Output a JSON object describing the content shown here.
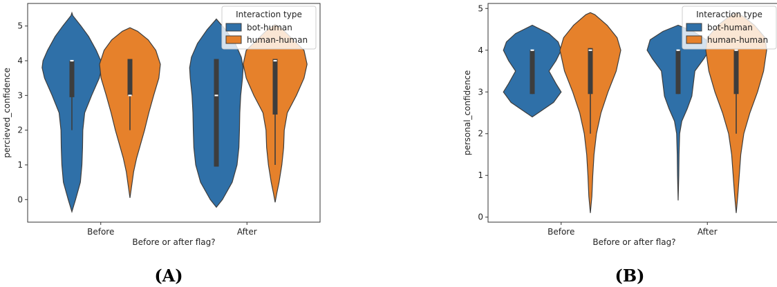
{
  "chart_data": [
    {
      "type": "violin",
      "panel_label": "(A)",
      "xlabel": "Before or after flag?",
      "ylabel": "percieved_confidence",
      "categories": [
        "Before",
        "After"
      ],
      "ylim": [
        -0.65,
        5.65
      ],
      "yticks": [
        0,
        1,
        2,
        3,
        4,
        5
      ],
      "legend": {
        "title": "Interaction type",
        "position": "top-right"
      },
      "series": [
        {
          "name": "bot-human",
          "color": "#2f70a8"
        },
        {
          "name": "human-human",
          "color": "#e6812b"
        }
      ],
      "violins": [
        {
          "category": "Before",
          "series": "bot-human",
          "q1": 2.95,
          "median": 4.0,
          "q3": 4.0,
          "whisker_low": 2.0,
          "whisker_high": 4.0,
          "profile": [
            [
              -0.35,
              0.0
            ],
            [
              0.0,
              0.12
            ],
            [
              0.5,
              0.28
            ],
            [
              1.0,
              0.33
            ],
            [
              1.5,
              0.35
            ],
            [
              2.0,
              0.36
            ],
            [
              2.5,
              0.42
            ],
            [
              3.0,
              0.65
            ],
            [
              3.5,
              0.9
            ],
            [
              3.8,
              0.98
            ],
            [
              4.0,
              0.95
            ],
            [
              4.3,
              0.8
            ],
            [
              4.7,
              0.55
            ],
            [
              5.0,
              0.3
            ],
            [
              5.3,
              0.03
            ],
            [
              5.38,
              0.0
            ]
          ]
        },
        {
          "category": "Before",
          "series": "human-human",
          "q1": 3.0,
          "median": 3.0,
          "q3": 4.05,
          "whisker_low": 2.0,
          "whisker_high": 4.05,
          "profile": [
            [
              0.05,
              0.0
            ],
            [
              0.3,
              0.04
            ],
            [
              0.8,
              0.12
            ],
            [
              1.2,
              0.22
            ],
            [
              1.6,
              0.35
            ],
            [
              2.0,
              0.48
            ],
            [
              2.5,
              0.62
            ],
            [
              3.0,
              0.78
            ],
            [
              3.5,
              0.95
            ],
            [
              3.9,
              1.0
            ],
            [
              4.3,
              0.85
            ],
            [
              4.6,
              0.6
            ],
            [
              4.85,
              0.25
            ],
            [
              4.95,
              0.0
            ]
          ]
        },
        {
          "category": "After",
          "series": "bot-human",
          "q1": 0.95,
          "median": 3.0,
          "q3": 4.05,
          "whisker_low": 0.95,
          "whisker_high": 4.05,
          "profile": [
            [
              -0.22,
              0.0
            ],
            [
              0.0,
              0.2
            ],
            [
              0.5,
              0.52
            ],
            [
              1.0,
              0.68
            ],
            [
              1.5,
              0.74
            ],
            [
              2.0,
              0.76
            ],
            [
              2.5,
              0.77
            ],
            [
              3.0,
              0.8
            ],
            [
              3.5,
              0.86
            ],
            [
              3.8,
              0.88
            ],
            [
              4.1,
              0.82
            ],
            [
              4.5,
              0.62
            ],
            [
              4.9,
              0.3
            ],
            [
              5.15,
              0.05
            ],
            [
              5.2,
              0.0
            ]
          ]
        },
        {
          "category": "After",
          "series": "human-human",
          "q1": 2.45,
          "median": 4.0,
          "q3": 4.05,
          "whisker_low": 1.0,
          "whisker_high": 4.05,
          "profile": [
            [
              -0.08,
              0.0
            ],
            [
              0.2,
              0.06
            ],
            [
              0.5,
              0.13
            ],
            [
              1.0,
              0.22
            ],
            [
              1.5,
              0.28
            ],
            [
              2.0,
              0.3
            ],
            [
              2.5,
              0.4
            ],
            [
              3.0,
              0.7
            ],
            [
              3.5,
              0.95
            ],
            [
              3.9,
              1.05
            ],
            [
              4.3,
              0.95
            ],
            [
              4.6,
              0.6
            ],
            [
              4.9,
              0.25
            ],
            [
              5.05,
              0.0
            ]
          ]
        }
      ]
    },
    {
      "type": "violin",
      "panel_label": "(B)",
      "xlabel": "Before or after flag?",
      "ylabel": "personal_confidence",
      "categories": [
        "Before",
        "After"
      ],
      "ylim": [
        -0.12,
        5.12
      ],
      "yticks": [
        0,
        1,
        2,
        3,
        4,
        5
      ],
      "legend": {
        "title": "Interaction type",
        "position": "top-right"
      },
      "series": [
        {
          "name": "bot-human",
          "color": "#2f70a8"
        },
        {
          "name": "human-human",
          "color": "#e6812b"
        }
      ],
      "violins": [
        {
          "category": "Before",
          "series": "bot-human",
          "q1": 2.95,
          "median": 4.0,
          "q3": 4.0,
          "whisker_low": 2.95,
          "whisker_high": 4.0,
          "profile": [
            [
              2.4,
              0.0
            ],
            [
              2.55,
              0.3
            ],
            [
              2.75,
              0.7
            ],
            [
              3.0,
              0.95
            ],
            [
              3.2,
              0.78
            ],
            [
              3.5,
              0.55
            ],
            [
              3.75,
              0.78
            ],
            [
              4.0,
              0.95
            ],
            [
              4.2,
              0.85
            ],
            [
              4.4,
              0.55
            ],
            [
              4.58,
              0.05
            ],
            [
              4.6,
              0.0
            ]
          ]
        },
        {
          "category": "Before",
          "series": "human-human",
          "q1": 2.95,
          "median": 4.0,
          "q3": 4.05,
          "whisker_low": 2.0,
          "whisker_high": 4.05,
          "profile": [
            [
              0.1,
              0.0
            ],
            [
              0.5,
              0.05
            ],
            [
              1.0,
              0.08
            ],
            [
              1.5,
              0.12
            ],
            [
              2.0,
              0.2
            ],
            [
              2.5,
              0.35
            ],
            [
              3.0,
              0.58
            ],
            [
              3.5,
              0.85
            ],
            [
              4.0,
              1.0
            ],
            [
              4.3,
              0.88
            ],
            [
              4.6,
              0.55
            ],
            [
              4.85,
              0.15
            ],
            [
              4.9,
              0.0
            ]
          ]
        },
        {
          "category": "After",
          "series": "bot-human",
          "q1": 2.95,
          "median": 4.0,
          "q3": 4.0,
          "whisker_low": 2.95,
          "whisker_high": 4.0,
          "profile": [
            [
              0.4,
              0.0
            ],
            [
              1.0,
              0.02
            ],
            [
              1.5,
              0.03
            ],
            [
              2.0,
              0.05
            ],
            [
              2.3,
              0.12
            ],
            [
              2.6,
              0.3
            ],
            [
              2.9,
              0.45
            ],
            [
              3.2,
              0.5
            ],
            [
              3.5,
              0.55
            ],
            [
              3.8,
              0.85
            ],
            [
              4.0,
              1.02
            ],
            [
              4.25,
              0.92
            ],
            [
              4.45,
              0.5
            ],
            [
              4.6,
              0.0
            ]
          ]
        },
        {
          "category": "After",
          "series": "human-human",
          "q1": 2.95,
          "median": 4.0,
          "q3": 4.0,
          "whisker_low": 2.0,
          "whisker_high": 4.0,
          "profile": [
            [
              0.1,
              0.0
            ],
            [
              0.5,
              0.05
            ],
            [
              1.0,
              0.1
            ],
            [
              1.5,
              0.15
            ],
            [
              2.0,
              0.25
            ],
            [
              2.5,
              0.45
            ],
            [
              3.0,
              0.7
            ],
            [
              3.5,
              0.9
            ],
            [
              4.0,
              1.0
            ],
            [
              4.3,
              0.95
            ],
            [
              4.6,
              0.6
            ],
            [
              4.8,
              0.25
            ],
            [
              4.9,
              0.0
            ]
          ]
        }
      ]
    }
  ]
}
